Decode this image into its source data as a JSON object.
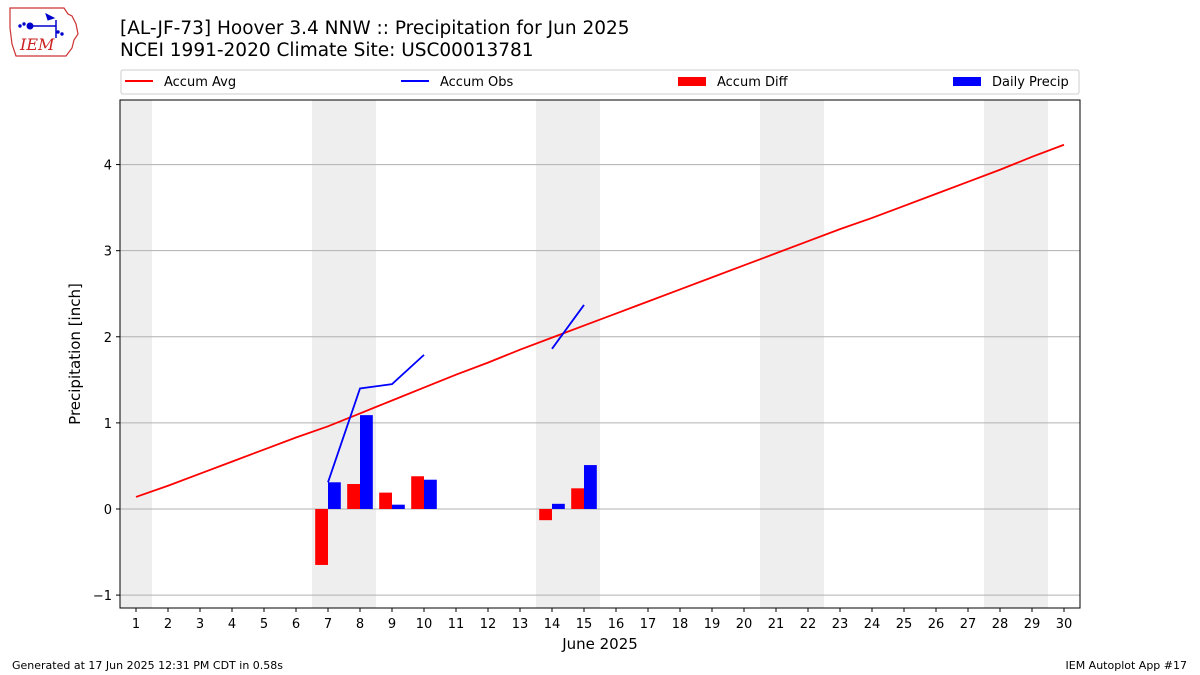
{
  "header": {
    "title": "[AL-JF-73] Hoover 3.4 NNW :: Precipitation for Jun 2025",
    "subtitle": "NCEI 1991-2020 Climate Site: USC00013781",
    "logo_text": "IEM"
  },
  "footer": {
    "generated": "Generated at 17 Jun 2025 12:31 PM CDT in 0.58s",
    "app": "IEM Autoplot App #17"
  },
  "colors": {
    "avg": "#ff0000",
    "obs": "#0000ff",
    "diff": "#ff0000",
    "daily": "#0000ff",
    "weekend_shade": "#eeeeee",
    "grid": "#b0b0b0"
  },
  "chart_data": {
    "type": "bar",
    "xlabel": "June 2025",
    "ylabel": "Precipitation [inch]",
    "xlim": [
      0.5,
      30.5
    ],
    "ylim": [
      -1.15,
      4.75
    ],
    "yticks": [
      -1,
      0,
      1,
      2,
      3,
      4
    ],
    "x_ticks": [
      "1",
      "2",
      "3",
      "4",
      "5",
      "6",
      "7",
      "8",
      "9",
      "10",
      "11",
      "12",
      "13",
      "14",
      "15",
      "16",
      "17",
      "18",
      "19",
      "20",
      "21",
      "22",
      "23",
      "24",
      "25",
      "26",
      "27",
      "28",
      "29",
      "30"
    ],
    "grid": "horizontal",
    "legend_position": "top",
    "weekend_shaded_days": [
      1,
      7,
      8,
      14,
      15,
      21,
      22,
      28,
      29
    ],
    "legend": [
      "Accum Avg",
      "Accum Obs",
      "Accum Diff",
      "Daily Precip"
    ],
    "accum_avg": {
      "name": "Accum Avg",
      "x": [
        1,
        2,
        3,
        4,
        5,
        6,
        7,
        8,
        9,
        10,
        11,
        12,
        13,
        14,
        15,
        16,
        17,
        18,
        19,
        20,
        21,
        22,
        23,
        24,
        25,
        26,
        27,
        28,
        29,
        30
      ],
      "y": [
        0.14,
        0.27,
        0.41,
        0.55,
        0.69,
        0.83,
        0.96,
        1.11,
        1.26,
        1.41,
        1.56,
        1.7,
        1.85,
        1.99,
        2.13,
        2.27,
        2.41,
        2.55,
        2.69,
        2.83,
        2.97,
        3.11,
        3.25,
        3.38,
        3.52,
        3.66,
        3.8,
        3.94,
        4.09,
        4.23
      ]
    },
    "accum_obs": {
      "name": "Accum Obs",
      "segments": [
        {
          "x": [
            7,
            8,
            9,
            10
          ],
          "y": [
            0.31,
            1.4,
            1.45,
            1.79
          ]
        },
        {
          "x": [
            14,
            15
          ],
          "y": [
            1.86,
            2.37
          ]
        }
      ]
    },
    "accum_diff": {
      "name": "Accum Diff",
      "x": [
        7,
        8,
        9,
        10,
        14,
        15
      ],
      "y": [
        -0.65,
        0.29,
        0.19,
        0.38,
        -0.13,
        0.24
      ]
    },
    "daily_precip": {
      "name": "Daily Precip",
      "x": [
        7,
        8,
        9,
        10,
        14,
        15
      ],
      "y": [
        0.31,
        1.09,
        0.05,
        0.34,
        0.06,
        0.51
      ]
    }
  }
}
